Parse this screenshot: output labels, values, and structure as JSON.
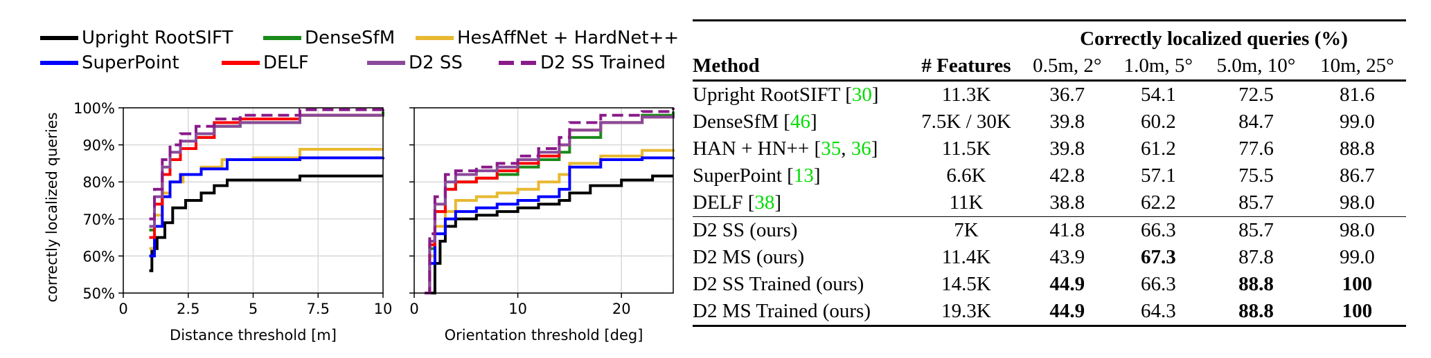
{
  "figure": {
    "legend": [
      {
        "name": "Upright RootSIFT",
        "color": "#000000",
        "dashed": false
      },
      {
        "name": "DenseSfM",
        "color": "#1a8a1a",
        "dashed": false
      },
      {
        "name": "HesAffNet + HardNet++",
        "color": "#e8b830",
        "dashed": false
      },
      {
        "name": "SuperPoint",
        "color": "#0000ff",
        "dashed": false
      },
      {
        "name": "DELF",
        "color": "#ff0000",
        "dashed": false
      },
      {
        "name": "D2 SS",
        "color": "#8a4a9a",
        "dashed": false
      },
      {
        "name": "D2 SS Trained",
        "color": "#8a1a8a",
        "dashed": true
      }
    ],
    "ylabel": "correctly localized queries"
  },
  "chart_data": [
    {
      "type": "line",
      "xlabel": "Distance threshold [m]",
      "ylabel": "correctly localized queries",
      "xlim": [
        0,
        10
      ],
      "ylim": [
        50,
        100
      ],
      "xticks": [
        "0",
        "2.5",
        "5",
        "7.5",
        "10"
      ],
      "yticks": [
        "50%",
        "60%",
        "70%",
        "80%",
        "90%",
        "100%"
      ],
      "grid": true,
      "series": [
        {
          "name": "Upright RootSIFT",
          "x": [
            1.0,
            1.1,
            1.3,
            1.6,
            1.9,
            2.4,
            3.0,
            3.5,
            4.0,
            5.5,
            6.8,
            10
          ],
          "y": [
            56,
            62,
            65,
            69,
            73,
            75,
            77,
            79,
            80.5,
            80.5,
            81.6,
            81.6
          ]
        },
        {
          "name": "DenseSfM",
          "x": [
            1.0,
            1.2,
            1.5,
            1.8,
            2.2,
            2.8,
            3.5,
            4.5,
            6.8,
            10
          ],
          "y": [
            67,
            74,
            82,
            86,
            89,
            92,
            95,
            96,
            98,
            99
          ]
        },
        {
          "name": "HesAffNet + HardNet++",
          "x": [
            1.0,
            1.2,
            1.5,
            1.8,
            2.3,
            3.0,
            3.8,
            5.0,
            6.8,
            10
          ],
          "y": [
            62,
            71,
            77,
            80,
            82,
            84,
            86,
            86.5,
            88.8,
            88.8
          ]
        },
        {
          "name": "SuperPoint",
          "x": [
            1.0,
            1.2,
            1.5,
            1.8,
            2.2,
            3.0,
            4.0,
            6.8,
            10
          ],
          "y": [
            60,
            68,
            76,
            80,
            82,
            83.5,
            86,
            86.5,
            86.7
          ]
        },
        {
          "name": "DELF",
          "x": [
            1.0,
            1.2,
            1.5,
            1.8,
            2.2,
            2.8,
            3.5,
            4.5,
            6.8,
            10
          ],
          "y": [
            65,
            74,
            82,
            86,
            89,
            92,
            96,
            97,
            98,
            98
          ]
        },
        {
          "name": "D2 SS",
          "x": [
            1.0,
            1.2,
            1.5,
            1.8,
            2.2,
            2.8,
            3.5,
            4.5,
            6.8,
            10
          ],
          "y": [
            68,
            76,
            84,
            88,
            91,
            93,
            95,
            96,
            98,
            98
          ]
        },
        {
          "name": "D2 SS Trained",
          "x": [
            1.0,
            1.2,
            1.5,
            1.8,
            2.2,
            2.8,
            3.5,
            4.5,
            6.8,
            10
          ],
          "y": [
            70,
            78,
            86,
            90,
            93,
            95,
            97,
            98,
            99.5,
            100
          ]
        }
      ]
    },
    {
      "type": "line",
      "xlabel": "Orientation threshold [deg]",
      "ylabel": "",
      "xlim": [
        0,
        25
      ],
      "ylim": [
        50,
        100
      ],
      "xticks": [
        "0",
        "10",
        "20"
      ],
      "yticks": [],
      "grid": true,
      "series": [
        {
          "name": "Upright RootSIFT",
          "x": [
            1.5,
            2.0,
            2.5,
            3.0,
            4.0,
            6.0,
            8.0,
            10.0,
            12.0,
            14.0,
            15.0,
            17.0,
            20.0,
            23.0,
            25.0
          ],
          "y": [
            50,
            58,
            64,
            68,
            70,
            71,
            72,
            73,
            74,
            75,
            77,
            79,
            80.5,
            81.6,
            81.6
          ]
        },
        {
          "name": "DenseSfM",
          "x": [
            1.0,
            1.5,
            2.0,
            3.0,
            4.0,
            6.0,
            8.0,
            10.0,
            12.0,
            14.0,
            15.0,
            18.0,
            22.0,
            25.0
          ],
          "y": [
            50,
            62,
            72,
            78,
            80,
            81,
            82,
            84,
            86,
            88,
            92,
            96,
            98,
            99
          ]
        },
        {
          "name": "HesAffNet + HardNet++",
          "x": [
            1.0,
            1.5,
            2.0,
            3.0,
            4.0,
            6.0,
            8.0,
            10.0,
            12.0,
            14.0,
            15.0,
            18.0,
            22.0,
            25.0
          ],
          "y": [
            50,
            60,
            68,
            72,
            75,
            76,
            77,
            78,
            80,
            82,
            85,
            87,
            88.5,
            88.8
          ]
        },
        {
          "name": "SuperPoint",
          "x": [
            1.0,
            1.5,
            2.0,
            3.0,
            4.0,
            6.0,
            8.0,
            10.0,
            12.0,
            14.0,
            15.0,
            18.0,
            22.0,
            25.0
          ],
          "y": [
            50,
            58,
            66,
            70,
            72,
            73,
            74,
            75,
            76,
            78,
            84,
            86,
            86.5,
            86.7
          ]
        },
        {
          "name": "DELF",
          "x": [
            1.0,
            1.5,
            2.0,
            3.0,
            4.0,
            6.0,
            8.0,
            10.0,
            12.0,
            14.0,
            15.0,
            18.0,
            22.0,
            25.0
          ],
          "y": [
            50,
            63,
            72,
            78,
            80,
            81,
            83,
            85,
            87,
            90,
            94,
            96,
            97.5,
            98
          ]
        },
        {
          "name": "D2 SS",
          "x": [
            1.0,
            1.5,
            2.0,
            3.0,
            4.0,
            6.0,
            8.0,
            10.0,
            12.0,
            14.0,
            15.0,
            18.0,
            22.0,
            25.0
          ],
          "y": [
            50,
            64,
            74,
            80,
            82,
            83,
            84,
            86,
            88,
            90,
            94,
            96,
            97.5,
            98
          ]
        },
        {
          "name": "D2 SS Trained",
          "x": [
            1.0,
            1.5,
            2.0,
            3.0,
            4.0,
            6.0,
            8.0,
            10.0,
            12.0,
            14.0,
            15.0,
            18.0,
            22.0,
            25.0
          ],
          "y": [
            50,
            66,
            76,
            82,
            83,
            84,
            85,
            87,
            89,
            92,
            96,
            98,
            99,
            100
          ]
        }
      ]
    }
  ],
  "table": {
    "group_header": "Correctly localized queries (%)",
    "headers": [
      "Method",
      "# Features",
      "0.5m, 2°",
      "1.0m, 5°",
      "5.0m, 10°",
      "10m, 25°"
    ],
    "rows": [
      {
        "method": "Upright RootSIFT",
        "cites": [
          "30"
        ],
        "features": "11.3K",
        "values": [
          "36.7",
          "54.1",
          "72.5",
          "81.6"
        ],
        "bold": [
          false,
          false,
          false,
          false
        ]
      },
      {
        "method": "DenseSfM",
        "cites": [
          "46"
        ],
        "features": "7.5K / 30K",
        "values": [
          "39.8",
          "60.2",
          "84.7",
          "99.0"
        ],
        "bold": [
          false,
          false,
          false,
          false
        ]
      },
      {
        "method": "HAN + HN++",
        "cites": [
          "35",
          "36"
        ],
        "features": "11.5K",
        "values": [
          "39.8",
          "61.2",
          "77.6",
          "88.8"
        ],
        "bold": [
          false,
          false,
          false,
          false
        ]
      },
      {
        "method": "SuperPoint",
        "cites": [
          "13"
        ],
        "features": "6.6K",
        "values": [
          "42.8",
          "57.1",
          "75.5",
          "86.7"
        ],
        "bold": [
          false,
          false,
          false,
          false
        ]
      },
      {
        "method": "DELF",
        "cites": [
          "38"
        ],
        "features": "11K",
        "values": [
          "38.8",
          "62.2",
          "85.7",
          "98.0"
        ],
        "bold": [
          false,
          false,
          false,
          false
        ]
      },
      {
        "method": "D2 SS (ours)",
        "cites": [],
        "features": "7K",
        "values": [
          "41.8",
          "66.3",
          "85.7",
          "98.0"
        ],
        "bold": [
          false,
          false,
          false,
          false
        ]
      },
      {
        "method": "D2 MS (ours)",
        "cites": [],
        "features": "11.4K",
        "values": [
          "43.9",
          "67.3",
          "87.8",
          "99.0"
        ],
        "bold": [
          false,
          true,
          false,
          false
        ]
      },
      {
        "method": "D2 SS Trained (ours)",
        "cites": [],
        "features": "14.5K",
        "values": [
          "44.9",
          "66.3",
          "88.8",
          "100"
        ],
        "bold": [
          true,
          false,
          true,
          true
        ]
      },
      {
        "method": "D2 MS Trained (ours)",
        "cites": [],
        "features": "19.3K",
        "values": [
          "44.9",
          "64.3",
          "88.8",
          "100"
        ],
        "bold": [
          true,
          false,
          true,
          true
        ]
      }
    ]
  }
}
